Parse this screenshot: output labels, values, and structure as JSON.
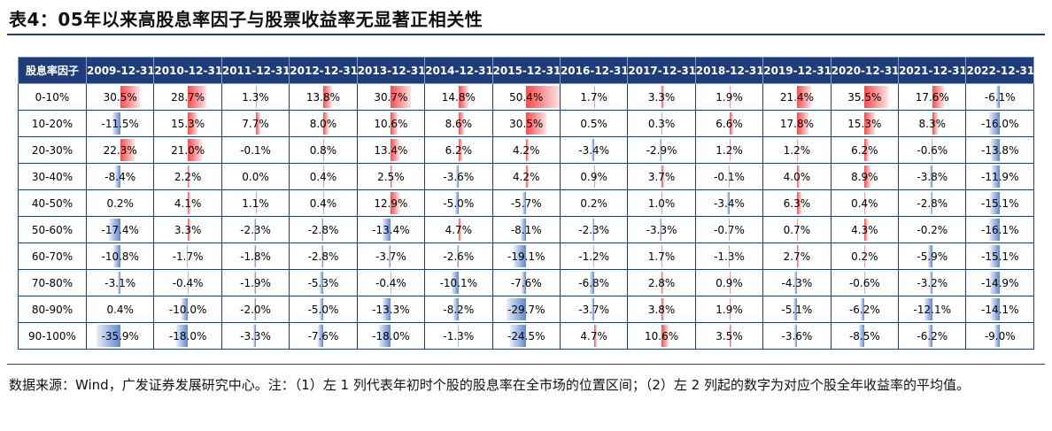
{
  "title": "表4：05年以来高股息率因子与股票收益率无显著正相关性",
  "table": {
    "corner_label": "股息率因子",
    "columns": [
      "2009-12-31",
      "2010-12-31",
      "2011-12-31",
      "2012-12-31",
      "2013-12-31",
      "2014-12-31",
      "2015-12-31",
      "2016-12-31",
      "2017-12-31",
      "2018-12-31",
      "2019-12-31",
      "2020-12-31",
      "2021-12-31",
      "2022-12-31"
    ],
    "rows": [
      {
        "label": "0-10%",
        "cells": [
          "30.5%",
          "28.7%",
          "1.3%",
          "13.8%",
          "30.7%",
          "14.8%",
          "50.4%",
          "1.7%",
          "3.3%",
          "1.9%",
          "21.4%",
          "35.5%",
          "17.6%",
          "-6.1%"
        ]
      },
      {
        "label": "10-20%",
        "cells": [
          "-11.5%",
          "15.3%",
          "7.7%",
          "8.0%",
          "10.6%",
          "8.6%",
          "30.5%",
          "0.5%",
          "0.3%",
          "6.6%",
          "17.8%",
          "15.3%",
          "8.3%",
          "-16.0%"
        ]
      },
      {
        "label": "20-30%",
        "cells": [
          "22.3%",
          "21.0%",
          "-0.1%",
          "0.8%",
          "13.4%",
          "6.2%",
          "4.2%",
          "-3.4%",
          "-2.9%",
          "1.2%",
          "1.2%",
          "6.2%",
          "-0.6%",
          "-13.8%"
        ]
      },
      {
        "label": "30-40%",
        "cells": [
          "-8.4%",
          "2.2%",
          "0.0%",
          "0.4%",
          "2.5%",
          "-3.6%",
          "4.2%",
          "0.9%",
          "3.7%",
          "-0.1%",
          "4.0%",
          "8.9%",
          "-3.8%",
          "-11.9%"
        ]
      },
      {
        "label": "40-50%",
        "cells": [
          "0.2%",
          "4.1%",
          "1.1%",
          "0.4%",
          "12.9%",
          "-5.0%",
          "-5.7%",
          "0.2%",
          "1.0%",
          "-3.4%",
          "6.3%",
          "0.4%",
          "-2.8%",
          "-15.1%"
        ]
      },
      {
        "label": "50-60%",
        "cells": [
          "-17.4%",
          "3.3%",
          "-2.3%",
          "-2.8%",
          "-13.4%",
          "4.7%",
          "-8.1%",
          "-2.3%",
          "-3.3%",
          "-0.7%",
          "0.7%",
          "4.3%",
          "-0.2%",
          "-16.1%"
        ]
      },
      {
        "label": "60-70%",
        "cells": [
          "-10.8%",
          "-1.7%",
          "-1.8%",
          "-2.8%",
          "-3.7%",
          "-2.6%",
          "-19.1%",
          "-1.2%",
          "1.7%",
          "-1.3%",
          "2.7%",
          "0.2%",
          "-5.9%",
          "-15.1%"
        ]
      },
      {
        "label": "70-80%",
        "cells": [
          "-3.1%",
          "-0.4%",
          "-1.9%",
          "-5.3%",
          "-0.4%",
          "-10.1%",
          "-7.6%",
          "-6.8%",
          "2.8%",
          "0.9%",
          "-4.3%",
          "-0.6%",
          "-3.2%",
          "-14.9%"
        ]
      },
      {
        "label": "80-90%",
        "cells": [
          "0.4%",
          "-10.0%",
          "-2.0%",
          "-5.0%",
          "-13.3%",
          "-8.2%",
          "-29.7%",
          "-3.7%",
          "3.8%",
          "1.9%",
          "-5.1%",
          "-6.2%",
          "-12.1%",
          "-14.1%"
        ]
      },
      {
        "label": "90-100%",
        "cells": [
          "-35.9%",
          "-18.0%",
          "-3.3%",
          "-7.6%",
          "-18.0%",
          "-1.3%",
          "-24.5%",
          "4.7%",
          "10.6%",
          "3.5%",
          "-3.6%",
          "-8.5%",
          "-6.2%",
          "-9.0%"
        ]
      }
    ]
  },
  "chart_data": {
    "type": "table",
    "title": "表4：05年以来高股息率因子与股票收益率无显著正相关性",
    "row_header": "股息率因子",
    "columns": [
      "2009-12-31",
      "2010-12-31",
      "2011-12-31",
      "2012-12-31",
      "2013-12-31",
      "2014-12-31",
      "2015-12-31",
      "2016-12-31",
      "2017-12-31",
      "2018-12-31",
      "2019-12-31",
      "2020-12-31",
      "2021-12-31",
      "2022-12-31"
    ],
    "rows": [
      "0-10%",
      "10-20%",
      "20-30%",
      "30-40%",
      "40-50%",
      "50-60%",
      "60-70%",
      "70-80%",
      "80-90%",
      "90-100%"
    ],
    "values": [
      [
        30.5,
        28.7,
        1.3,
        13.8,
        30.7,
        14.8,
        50.4,
        1.7,
        3.3,
        1.9,
        21.4,
        35.5,
        17.6,
        -6.1
      ],
      [
        -11.5,
        15.3,
        7.7,
        8.0,
        10.6,
        8.6,
        30.5,
        0.5,
        0.3,
        6.6,
        17.8,
        15.3,
        8.3,
        -16.0
      ],
      [
        22.3,
        21.0,
        -0.1,
        0.8,
        13.4,
        6.2,
        4.2,
        -3.4,
        -2.9,
        1.2,
        1.2,
        6.2,
        -0.6,
        -13.8
      ],
      [
        -8.4,
        2.2,
        0.0,
        0.4,
        2.5,
        -3.6,
        4.2,
        0.9,
        3.7,
        -0.1,
        4.0,
        8.9,
        -3.8,
        -11.9
      ],
      [
        0.2,
        4.1,
        1.1,
        0.4,
        12.9,
        -5.0,
        -5.7,
        0.2,
        1.0,
        -3.4,
        6.3,
        0.4,
        -2.8,
        -15.1
      ],
      [
        -17.4,
        3.3,
        -2.3,
        -2.8,
        -13.4,
        4.7,
        -8.1,
        -2.3,
        -3.3,
        -0.7,
        0.7,
        4.3,
        -0.2,
        -16.1
      ],
      [
        -10.8,
        -1.7,
        -1.8,
        -2.8,
        -3.7,
        -2.6,
        -19.1,
        -1.2,
        1.7,
        -1.3,
        2.7,
        0.2,
        -5.9,
        -15.1
      ],
      [
        -3.1,
        -0.4,
        -1.9,
        -5.3,
        -0.4,
        -10.1,
        -7.6,
        -6.8,
        2.8,
        0.9,
        -4.3,
        -0.6,
        -3.2,
        -14.9
      ],
      [
        0.4,
        -10.0,
        -2.0,
        -5.0,
        -13.3,
        -8.2,
        -29.7,
        -3.7,
        3.8,
        1.9,
        -5.1,
        -6.2,
        -12.1,
        -14.1
      ],
      [
        -35.9,
        -18.0,
        -3.3,
        -7.6,
        -18.0,
        -1.3,
        -24.5,
        4.7,
        10.6,
        3.5,
        -3.6,
        -8.5,
        -6.2,
        -9.0
      ]
    ],
    "unit": "%",
    "positive_color": "#ff3b3b",
    "negative_color": "#5b84cc"
  },
  "colors": {
    "header_bg": "#1f3d7a",
    "header_text": "#ffffff"
  },
  "note": "数据来源：Wind，广发证券发展研究中心。注：（1）左 1 列代表年初时个股的股息率在全市场的位置区间；（2）左 2 列起的数字为对应个股全年收益率的平均值。"
}
